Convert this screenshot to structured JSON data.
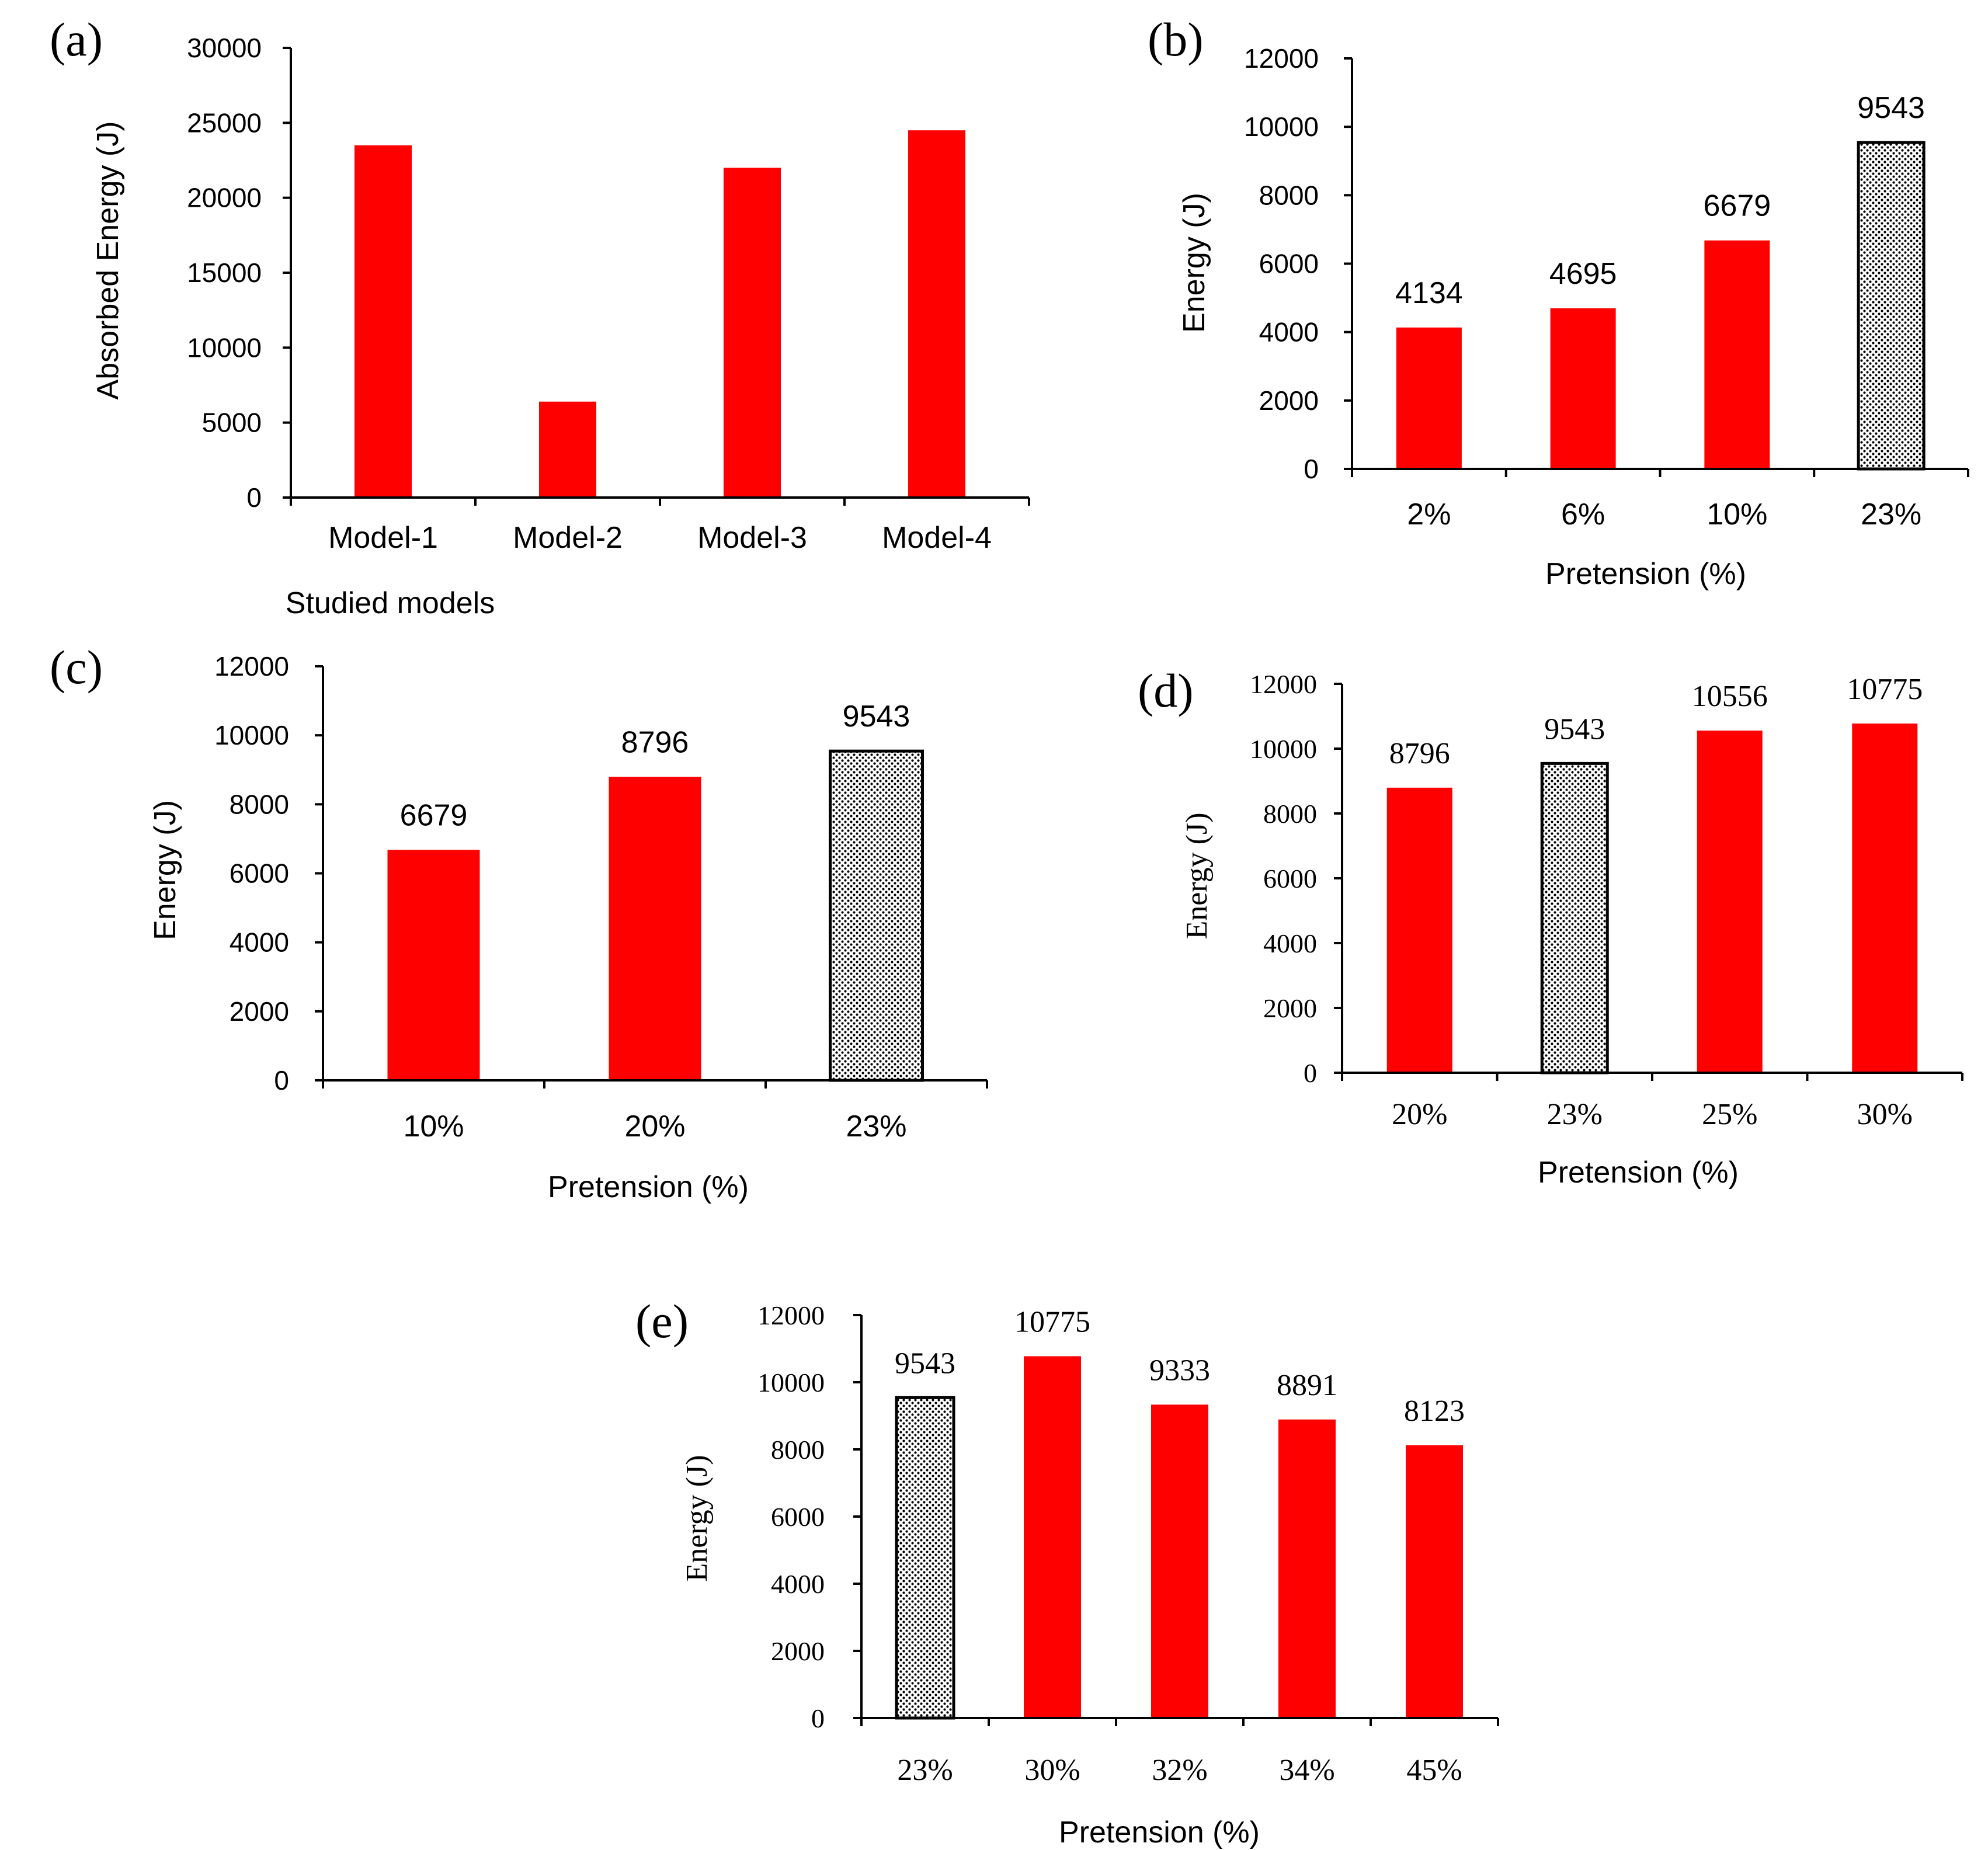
{
  "colors": {
    "bar": "#ff0000",
    "axis": "#000000",
    "text": "#000000",
    "hatch_dot": "#000000",
    "hatch_bg": "#ffffff"
  },
  "chart_data": [
    {
      "id": "a",
      "panel_label": "(a)",
      "type": "bar",
      "categories": [
        "Model-1",
        "Model-2",
        "Model-3",
        "Model-4"
      ],
      "values": [
        23500,
        6400,
        22000,
        24500
      ],
      "patterns": [
        "solid",
        "solid",
        "solid",
        "solid"
      ],
      "data_labels": [
        "",
        "",
        "",
        ""
      ],
      "ylim": [
        0,
        30000
      ],
      "yticks": [
        "0",
        "5000",
        "10000",
        "15000",
        "20000",
        "25000",
        "30000"
      ],
      "xlabel": "Studied models",
      "ylabel": "Absorbed Energy (J)"
    },
    {
      "id": "b",
      "panel_label": "(b)",
      "type": "bar",
      "categories": [
        "2%",
        "6%",
        "10%",
        "23%"
      ],
      "values": [
        4134,
        4695,
        6679,
        9543
      ],
      "patterns": [
        "solid",
        "solid",
        "solid",
        "dotted"
      ],
      "data_labels": [
        "4134",
        "4695",
        "6679",
        "9543"
      ],
      "ylim": [
        0,
        12000
      ],
      "yticks": [
        "0",
        "2000",
        "4000",
        "6000",
        "8000",
        "10000",
        "12000"
      ],
      "xlabel": "Pretension (%)",
      "ylabel": "Energy (J)"
    },
    {
      "id": "c",
      "panel_label": "(c)",
      "type": "bar",
      "categories": [
        "10%",
        "20%",
        "23%"
      ],
      "values": [
        6679,
        8796,
        9543
      ],
      "patterns": [
        "solid",
        "solid",
        "dotted"
      ],
      "data_labels": [
        "6679",
        "8796",
        "9543"
      ],
      "ylim": [
        0,
        12000
      ],
      "yticks": [
        "0",
        "2000",
        "4000",
        "6000",
        "8000",
        "10000",
        "12000"
      ],
      "xlabel": "Pretension (%)",
      "ylabel": "Energy (J)"
    },
    {
      "id": "d",
      "panel_label": "(d)",
      "type": "bar",
      "categories": [
        "20%",
        "23%",
        "25%",
        "30%"
      ],
      "values": [
        8796,
        9543,
        10556,
        10775
      ],
      "patterns": [
        "solid",
        "dotted",
        "solid",
        "solid"
      ],
      "data_labels": [
        "8796",
        "9543",
        "10556",
        "10775"
      ],
      "ylim": [
        0,
        12000
      ],
      "yticks": [
        "0",
        "2000",
        "4000",
        "6000",
        "8000",
        "10000",
        "12000"
      ],
      "xlabel": "Pretension (%)",
      "ylabel": "Energy (J)"
    },
    {
      "id": "e",
      "panel_label": "(e)",
      "type": "bar",
      "categories": [
        "23%",
        "30%",
        "32%",
        "34%",
        "45%"
      ],
      "values": [
        9543,
        10775,
        9333,
        8891,
        8123
      ],
      "patterns": [
        "dotted",
        "solid",
        "solid",
        "solid",
        "solid"
      ],
      "data_labels": [
        "9543",
        "10775",
        "9333",
        "8891",
        "8123"
      ],
      "ylim": [
        0,
        12000
      ],
      "yticks": [
        "0",
        "2000",
        "4000",
        "6000",
        "8000",
        "10000",
        "12000"
      ],
      "xlabel": "Pretension (%)",
      "ylabel": "Energy (J)"
    }
  ]
}
